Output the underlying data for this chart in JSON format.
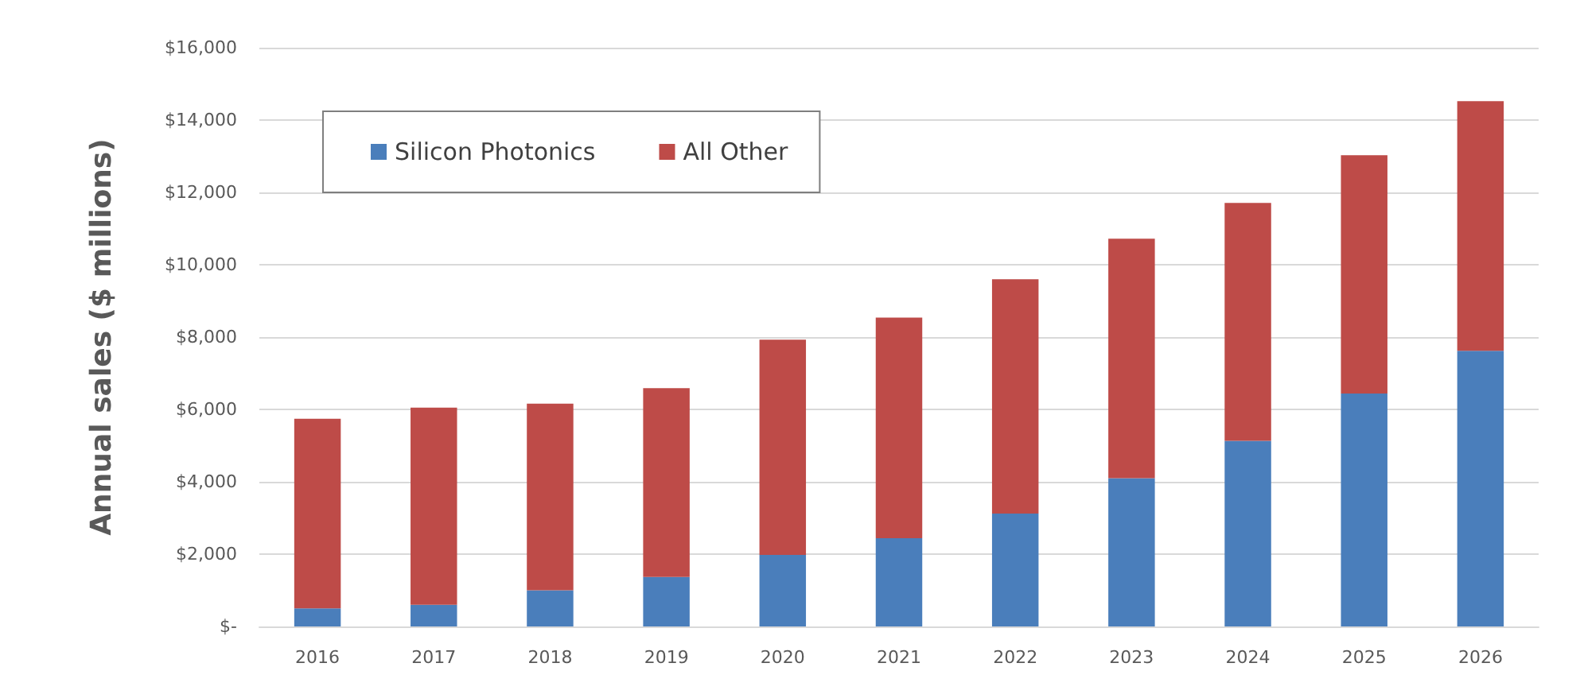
{
  "chart_data": {
    "type": "bar",
    "stacked": true,
    "ylabel": "Annual sales ($ millions)",
    "categories": [
      "2016",
      "2017",
      "2018",
      "2019",
      "2020",
      "2021",
      "2022",
      "2023",
      "2024",
      "2025",
      "2026"
    ],
    "series": [
      {
        "name": "Silicon Photonics",
        "color": "#4a7ebb",
        "values": [
          500,
          600,
          1000,
          1370,
          1980,
          2440,
          3120,
          4100,
          5130,
          6440,
          7620
        ]
      },
      {
        "name": "All Other",
        "color": "#be4b48",
        "values": [
          5240,
          5450,
          5160,
          5220,
          5950,
          6100,
          6480,
          6620,
          6580,
          6590,
          6900
        ]
      }
    ],
    "ylim": [
      0,
      16000
    ],
    "yticks": [
      {
        "value": 0,
        "label": "$-"
      },
      {
        "value": 2000,
        "label": "$2,000"
      },
      {
        "value": 4000,
        "label": "$4,000"
      },
      {
        "value": 6000,
        "label": "$6,000"
      },
      {
        "value": 8000,
        "label": "$8,000"
      },
      {
        "value": 10000,
        "label": "$10,000"
      },
      {
        "value": 12000,
        "label": "$12,000"
      },
      {
        "value": 14000,
        "label": "$14,000"
      },
      {
        "value": 16000,
        "label": "$16,000"
      }
    ],
    "grid": "y",
    "legend": "top left"
  }
}
